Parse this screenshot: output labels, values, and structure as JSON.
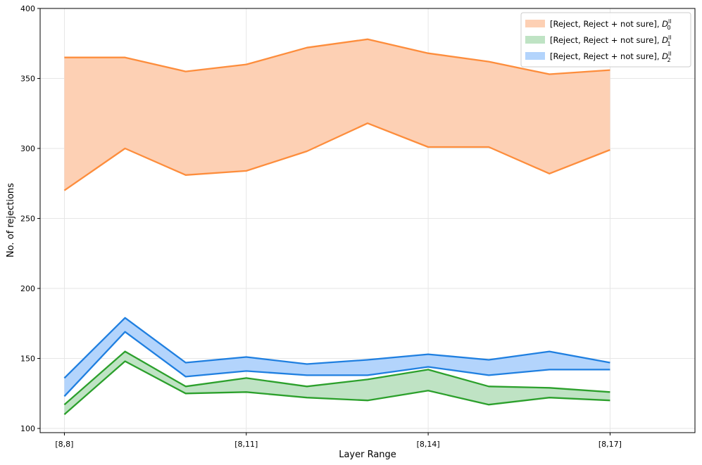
{
  "chart_data": {
    "type": "area",
    "xlabel": "Layer Range",
    "ylabel": "No. of rejections",
    "x": [
      8,
      9,
      10,
      11,
      12,
      13,
      14,
      15,
      16,
      17
    ],
    "x_ticks": [
      {
        "value": 8,
        "label": "[8,8]"
      },
      {
        "value": 11,
        "label": "[8,11]"
      },
      {
        "value": 14,
        "label": "[8,14]"
      },
      {
        "value": 17,
        "label": "[8,17]"
      }
    ],
    "xlim": [
      7.6,
      18.4
    ],
    "ylim": [
      97,
      400
    ],
    "y_ticks": [
      100,
      150,
      200,
      250,
      300,
      350,
      400
    ],
    "grid": true,
    "legend_position": "top-right",
    "series": [
      {
        "name": "[Reject, Reject + not sure], D0",
        "legend_prefix": "[Reject, Reject + not sure], ",
        "legend_symbol": "D",
        "legend_sup": "ll",
        "legend_sub": "0",
        "color": "#fd8d3c",
        "fill": "#fdd0b4",
        "reject": [
          270,
          300,
          281,
          284,
          298,
          318,
          301,
          301,
          282,
          299
        ],
        "reject_not_sure": [
          365,
          365,
          355,
          360,
          372,
          378,
          368,
          362,
          353,
          356
        ]
      },
      {
        "name": "[Reject, Reject + not sure], D1",
        "legend_prefix": "[Reject, Reject + not sure], ",
        "legend_symbol": "D",
        "legend_sup": "ll",
        "legend_sub": "1",
        "color": "#2ca02c",
        "fill": "#bfe3c4",
        "reject": [
          110,
          148,
          125,
          126,
          122,
          120,
          127,
          117,
          122,
          120
        ],
        "reject_not_sure": [
          117,
          155,
          130,
          136,
          130,
          135,
          142,
          130,
          129,
          126
        ]
      },
      {
        "name": "[Reject, Reject + not sure], D2",
        "legend_prefix": "[Reject, Reject + not sure], ",
        "legend_symbol": "D",
        "legend_sup": "ll",
        "legend_sub": "2",
        "color": "#1f7fe0",
        "fill": "#b3d4fc",
        "reject": [
          123,
          169,
          137,
          141,
          138,
          138,
          144,
          138,
          142,
          142
        ],
        "reject_not_sure": [
          136,
          179,
          147,
          151,
          146,
          149,
          153,
          149,
          155,
          147
        ]
      }
    ]
  }
}
